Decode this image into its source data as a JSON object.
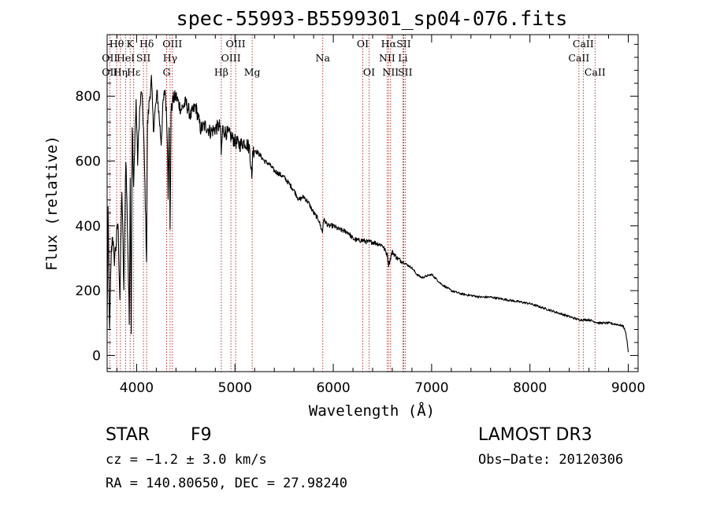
{
  "chart_data": {
    "type": "line",
    "title": "spec-55993-B5599301_sp04-076.fits",
    "xlabel": "Wavelength (Å)",
    "ylabel": "Flux (relative)",
    "xlim": [
      3700,
      9100
    ],
    "ylim": [
      -50,
      990
    ],
    "x_ticks": [
      4000,
      5000,
      6000,
      7000,
      8000,
      9000
    ],
    "x_tick_labels": [
      "4000",
      "5000",
      "6000",
      "7000",
      "8000",
      "9000"
    ],
    "y_ticks": [
      0,
      200,
      400,
      600,
      800
    ],
    "y_tick_labels": [
      "0",
      "200",
      "400",
      "600",
      "800"
    ],
    "series": [
      {
        "name": "spectrum",
        "x": [
          3700,
          3710,
          3725,
          3740,
          3755,
          3770,
          3790,
          3810,
          3830,
          3850,
          3870,
          3890,
          3910,
          3925,
          3935,
          3945,
          3955,
          3969,
          3980,
          3995,
          4010,
          4030,
          4050,
          4070,
          4080,
          4101,
          4110,
          4130,
          4150,
          4170,
          4190,
          4210,
          4230,
          4250,
          4270,
          4290,
          4310,
          4320,
          4330,
          4340,
          4350,
          4370,
          4400,
          4450,
          4500,
          4550,
          4600,
          4650,
          4700,
          4750,
          4800,
          4850,
          4861,
          4875,
          4900,
          4950,
          5000,
          5050,
          5100,
          5150,
          5172,
          5180,
          5200,
          5250,
          5300,
          5350,
          5400,
          5450,
          5500,
          5550,
          5600,
          5650,
          5700,
          5750,
          5800,
          5850,
          5890,
          5900,
          5950,
          6000,
          6050,
          6100,
          6150,
          6200,
          6250,
          6300,
          6350,
          6400,
          6450,
          6500,
          6550,
          6563,
          6600,
          6650,
          6700,
          6750,
          6800,
          6850,
          6900,
          6950,
          7000,
          7100,
          7200,
          7300,
          7400,
          7500,
          7600,
          7700,
          7800,
          7900,
          8000,
          8100,
          8200,
          8300,
          8400,
          8500,
          8600,
          8700,
          8800,
          8900,
          8950,
          8970,
          8990,
          9000
        ],
        "y": [
          100,
          430,
          60,
          300,
          380,
          290,
          340,
          410,
          180,
          520,
          200,
          620,
          350,
          100,
          570,
          80,
          720,
          500,
          650,
          780,
          600,
          750,
          820,
          700,
          580,
          300,
          710,
          790,
          850,
          700,
          760,
          810,
          730,
          660,
          780,
          820,
          700,
          500,
          720,
          380,
          750,
          790,
          800,
          760,
          780,
          740,
          770,
          700,
          710,
          690,
          700,
          710,
          620,
          700,
          690,
          680,
          660,
          650,
          660,
          640,
          540,
          630,
          635,
          620,
          600,
          590,
          570,
          560,
          550,
          530,
          510,
          480,
          490,
          470,
          440,
          420,
          380,
          420,
          400,
          400,
          390,
          385,
          380,
          360,
          355,
          355,
          350,
          350,
          345,
          340,
          310,
          280,
          320,
          300,
          290,
          280,
          270,
          250,
          240,
          245,
          250,
          220,
          200,
          190,
          185,
          180,
          180,
          175,
          170,
          165,
          160,
          150,
          140,
          130,
          120,
          110,
          110,
          100,
          100,
          95,
          90,
          75,
          40,
          10
        ]
      }
    ],
    "spectral_lines": [
      {
        "label": "Hθ",
        "x": 3797,
        "row": 0
      },
      {
        "label": "OII",
        "x": 3727,
        "row": 1
      },
      {
        "label": "OII",
        "x": 3727,
        "row": 2
      },
      {
        "label": "Hη",
        "x": 3835,
        "row": 2
      },
      {
        "label": "HeI",
        "x": 3889,
        "row": 1
      },
      {
        "label": "K",
        "x": 3934,
        "row": 0
      },
      {
        "label": "SII",
        "x": 4069,
        "row": 1
      },
      {
        "label": "Hε",
        "x": 3970,
        "row": 2
      },
      {
        "label": "Hδ",
        "x": 4102,
        "row": 0
      },
      {
        "label": "OIII",
        "x": 4363,
        "row": 0
      },
      {
        "label": "Hγ",
        "x": 4340,
        "row": 1
      },
      {
        "label": "G",
        "x": 4305,
        "row": 2
      },
      {
        "label": "Hβ",
        "x": 4861,
        "row": 2
      },
      {
        "label": "OIII",
        "x": 5007,
        "row": 0
      },
      {
        "label": "OIII",
        "x": 4959,
        "row": 1
      },
      {
        "label": "Mg",
        "x": 5175,
        "row": 2
      },
      {
        "label": "Na",
        "x": 5893,
        "row": 1
      },
      {
        "label": "OI",
        "x": 6300,
        "row": 0
      },
      {
        "label": "OI",
        "x": 6364,
        "row": 2
      },
      {
        "label": "Hα",
        "x": 6563,
        "row": 0
      },
      {
        "label": "NII",
        "x": 6548,
        "row": 1
      },
      {
        "label": "NII",
        "x": 6583,
        "row": 2
      },
      {
        "label": "SII",
        "x": 6716,
        "row": 0
      },
      {
        "label": "Li",
        "x": 6708,
        "row": 1
      },
      {
        "label": "SII",
        "x": 6731,
        "row": 2
      },
      {
        "label": "CaII",
        "x": 8542,
        "row": 0
      },
      {
        "label": "CaII",
        "x": 8498,
        "row": 1
      },
      {
        "label": "CaII",
        "x": 8662,
        "row": 2
      }
    ],
    "grid": false,
    "legend": "none"
  },
  "footer": {
    "object_type": "STAR",
    "subclass": "F9",
    "survey": "LAMOST DR3",
    "cz": "cz = −1.2 ± 3.0 km/s",
    "obs_date": "Obs−Date: 20120306",
    "coords": "RA = 140.80650, DEC =  27.98240"
  },
  "colors": {
    "spectrum": "#000000",
    "line_markers": "#b22222",
    "axes": "#000000",
    "background": "#ffffff"
  }
}
